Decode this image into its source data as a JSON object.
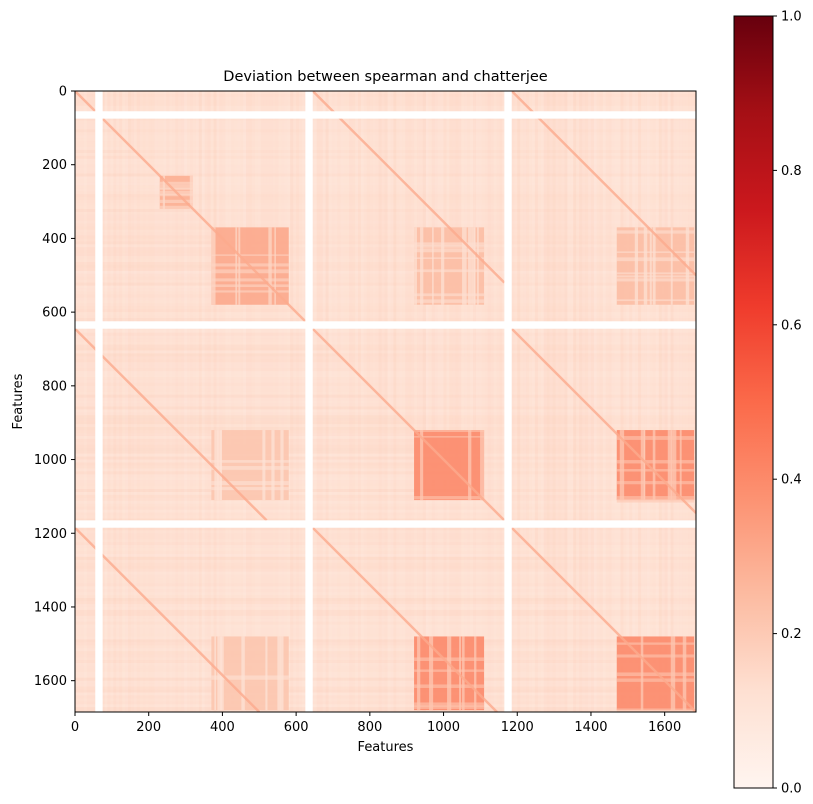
{
  "chart_data": {
    "type": "heatmap",
    "title": "Deviation between spearman and chatterjee",
    "xlabel": "Features",
    "ylabel": "Features",
    "n_features": 1685,
    "xlim": [
      0,
      1685
    ],
    "ylim": [
      1685,
      0
    ],
    "x_ticks": [
      0,
      200,
      400,
      600,
      800,
      1000,
      1200,
      1400,
      1600
    ],
    "y_ticks": [
      0,
      200,
      400,
      600,
      800,
      1000,
      1200,
      1400,
      1600
    ],
    "colorbar": {
      "colormap": "Reds",
      "range": [
        0,
        1
      ],
      "ticks": [
        "0.0",
        "0.2",
        "0.4",
        "0.6",
        "0.8",
        "1.0"
      ],
      "tick_values": [
        0,
        0.2,
        0.4,
        0.6,
        0.8,
        1.0
      ]
    },
    "blank_bands": [
      [
        55,
        75
      ],
      [
        625,
        645
      ],
      [
        1165,
        1185
      ]
    ],
    "sub_blocks": [
      {
        "start": 0,
        "end": 625
      },
      {
        "start": 645,
        "end": 1165
      },
      {
        "start": 1185,
        "end": 1685
      }
    ],
    "high_deviation_regions": [
      {
        "x": [
          920,
          1110
        ],
        "y": [
          920,
          1110
        ],
        "value": 0.42
      },
      {
        "x": [
          1470,
          1680
        ],
        "y": [
          920,
          1110
        ],
        "value": 0.42
      },
      {
        "x": [
          920,
          1110
        ],
        "y": [
          1480,
          1680
        ],
        "value": 0.42
      },
      {
        "x": [
          1470,
          1680
        ],
        "y": [
          1480,
          1680
        ],
        "value": 0.42
      },
      {
        "x": [
          370,
          580
        ],
        "y": [
          370,
          580
        ],
        "value": 0.32
      },
      {
        "x": [
          230,
          320
        ],
        "y": [
          230,
          320
        ],
        "value": 0.3
      },
      {
        "x": [
          920,
          1110
        ],
        "y": [
          370,
          580
        ],
        "value": 0.25
      },
      {
        "x": [
          1470,
          1680
        ],
        "y": [
          370,
          580
        ],
        "value": 0.25
      },
      {
        "x": [
          370,
          580
        ],
        "y": [
          920,
          1110
        ],
        "value": 0.22
      },
      {
        "x": [
          370,
          580
        ],
        "y": [
          1480,
          1680
        ],
        "value": 0.22
      }
    ],
    "background_value": 0.12,
    "diagonal_value": 0.3,
    "colors": {
      "low": "#fff5f0",
      "high": "#67000d"
    }
  }
}
